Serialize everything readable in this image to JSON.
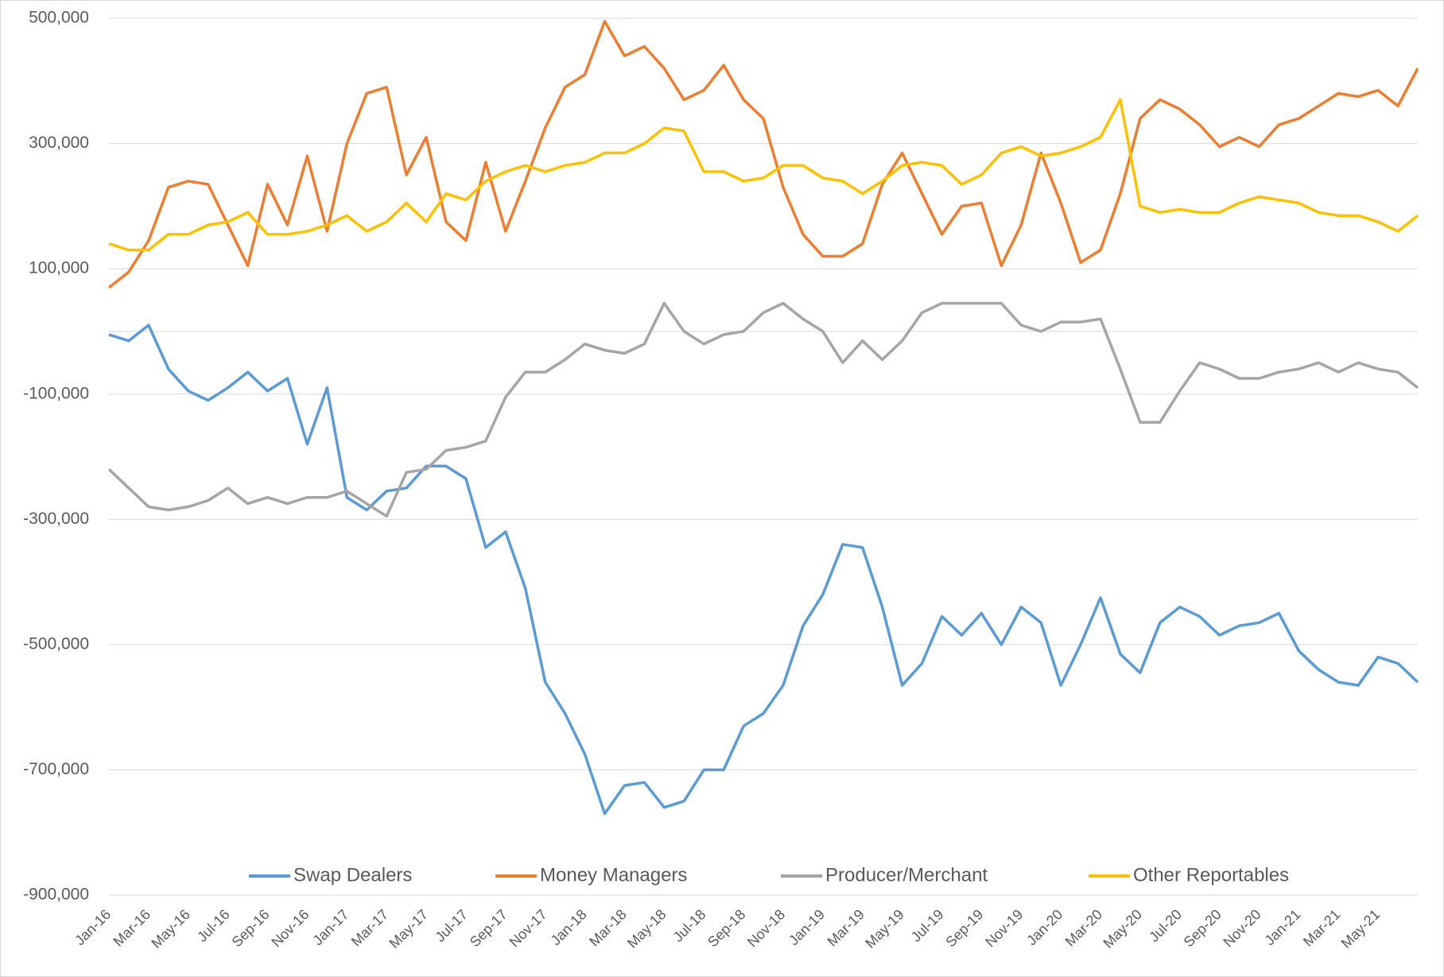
{
  "chart_data": {
    "type": "line",
    "categories": [
      "Jan-16",
      null,
      "Mar-16",
      null,
      "May-16",
      null,
      "Jul-16",
      null,
      "Sep-16",
      null,
      "Nov-16",
      null,
      "Jan-17",
      null,
      "Mar-17",
      null,
      "May-17",
      null,
      "Jul-17",
      null,
      "Sep-17",
      null,
      "Nov-17",
      null,
      "Jan-18",
      null,
      "Mar-18",
      null,
      "May-18",
      null,
      "Jul-18",
      null,
      "Sep-18",
      null,
      "Nov-18",
      null,
      "Jan-19",
      null,
      "Mar-19",
      null,
      "May-19",
      null,
      "Jul-19",
      null,
      "Sep-19",
      null,
      "Nov-19",
      null,
      "Jan-20",
      null,
      "Mar-20",
      null,
      "May-20",
      null,
      "Jul-20",
      null,
      "Sep-20",
      null,
      "Nov-20",
      null,
      "Jan-21",
      null,
      "Mar-21",
      null,
      "May-21",
      null,
      null
    ],
    "series": [
      {
        "name": "Swap Dealers",
        "color": "#5b9bd5",
        "values": [
          -5000,
          -15000,
          10000,
          -60000,
          -95000,
          -110000,
          -90000,
          -65000,
          -95000,
          -75000,
          -180000,
          -90000,
          -265000,
          -285000,
          -255000,
          -250000,
          -215000,
          -215000,
          -235000,
          -345000,
          -320000,
          -410000,
          -560000,
          -610000,
          -675000,
          -770000,
          -725000,
          -720000,
          -760000,
          -750000,
          -700000,
          -700000,
          -630000,
          -610000,
          -565000,
          -470000,
          -420000,
          -340000,
          -345000,
          -440000,
          -565000,
          -530000,
          -455000,
          -485000,
          -450000,
          -500000,
          -440000,
          -465000,
          -565000,
          -500000,
          -425000,
          -515000,
          -545000,
          -465000,
          -440000,
          -455000,
          -485000,
          -470000,
          -465000,
          -450000,
          -510000,
          -540000,
          -560000,
          -565000,
          -520000,
          -530000,
          -560000
        ]
      },
      {
        "name": "Money Managers",
        "color": "#ed7d31",
        "values": [
          70000,
          95000,
          145000,
          230000,
          240000,
          235000,
          170000,
          105000,
          235000,
          170000,
          280000,
          160000,
          300000,
          380000,
          390000,
          250000,
          310000,
          175000,
          145000,
          270000,
          160000,
          240000,
          325000,
          390000,
          410000,
          495000,
          440000,
          455000,
          420000,
          370000,
          385000,
          425000,
          370000,
          340000,
          230000,
          155000,
          120000,
          120000,
          140000,
          235000,
          285000,
          220000,
          155000,
          200000,
          205000,
          105000,
          170000,
          285000,
          205000,
          110000,
          130000,
          220000,
          340000,
          370000,
          355000,
          330000,
          295000,
          310000,
          295000,
          330000,
          340000,
          360000,
          380000,
          375000,
          385000,
          360000,
          420000
        ]
      },
      {
        "name": "Producer/Merchant",
        "color": "#a5a5a5",
        "values": [
          -220000,
          -250000,
          -280000,
          -285000,
          -280000,
          -270000,
          -250000,
          -275000,
          -265000,
          -275000,
          -265000,
          -265000,
          -255000,
          -275000,
          -295000,
          -225000,
          -220000,
          -190000,
          -185000,
          -175000,
          -105000,
          -65000,
          -65000,
          -45000,
          -20000,
          -30000,
          -35000,
          -20000,
          45000,
          0,
          -20000,
          -5000,
          0,
          30000,
          45000,
          20000,
          0,
          -50000,
          -15000,
          -45000,
          -15000,
          30000,
          45000,
          45000,
          45000,
          45000,
          10000,
          0,
          15000,
          15000,
          20000,
          -60000,
          -145000,
          -145000,
          -95000,
          -50000,
          -60000,
          -75000,
          -75000,
          -65000,
          -60000,
          -50000,
          -65000,
          -50000,
          -60000,
          -65000,
          -90000
        ]
      },
      {
        "name": "Other Reportables",
        "color": "#ffc000",
        "values": [
          140000,
          130000,
          130000,
          155000,
          155000,
          170000,
          175000,
          190000,
          155000,
          155000,
          160000,
          170000,
          185000,
          160000,
          175000,
          205000,
          175000,
          220000,
          210000,
          240000,
          255000,
          265000,
          255000,
          265000,
          270000,
          285000,
          285000,
          300000,
          325000,
          320000,
          255000,
          255000,
          240000,
          245000,
          265000,
          265000,
          245000,
          240000,
          220000,
          240000,
          265000,
          270000,
          265000,
          235000,
          250000,
          285000,
          295000,
          280000,
          285000,
          295000,
          310000,
          370000,
          200000,
          190000,
          195000,
          190000,
          190000,
          205000,
          215000,
          210000,
          205000,
          190000,
          185000,
          185000,
          175000,
          160000,
          185000
        ]
      }
    ],
    "ylim": [
      -900000,
      500000
    ],
    "yticks": [
      {
        "value": -900000,
        "label": "-900,000"
      },
      {
        "value": -700000,
        "label": "-700,000"
      },
      {
        "value": -500000,
        "label": "-500,000"
      },
      {
        "value": -300000,
        "label": "-300,000"
      },
      {
        "value": -100000,
        "label": "-100,000"
      },
      {
        "value": 100000,
        "label": "100,000"
      },
      {
        "value": 300000,
        "label": "300,000"
      },
      {
        "value": 500000,
        "label": "500,000"
      }
    ],
    "grid": true,
    "legend": "bottom"
  }
}
